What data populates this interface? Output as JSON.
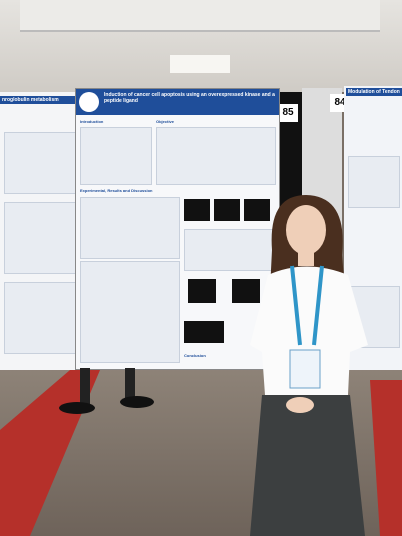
{
  "scene": {
    "left_poster": {
      "title": "nroglobulin metabolism"
    },
    "center_poster": {
      "title": "Induction of cancer cell apoptosis using an overexpressed kinase and a peptide ligand",
      "headings": [
        "Introduction",
        "Objective",
        "Experimental, Results and Discussion",
        "Conclusion"
      ]
    },
    "board_numbers": [
      "85",
      "84"
    ],
    "right_poster": {
      "title": "Modulation of Tendon"
    }
  }
}
